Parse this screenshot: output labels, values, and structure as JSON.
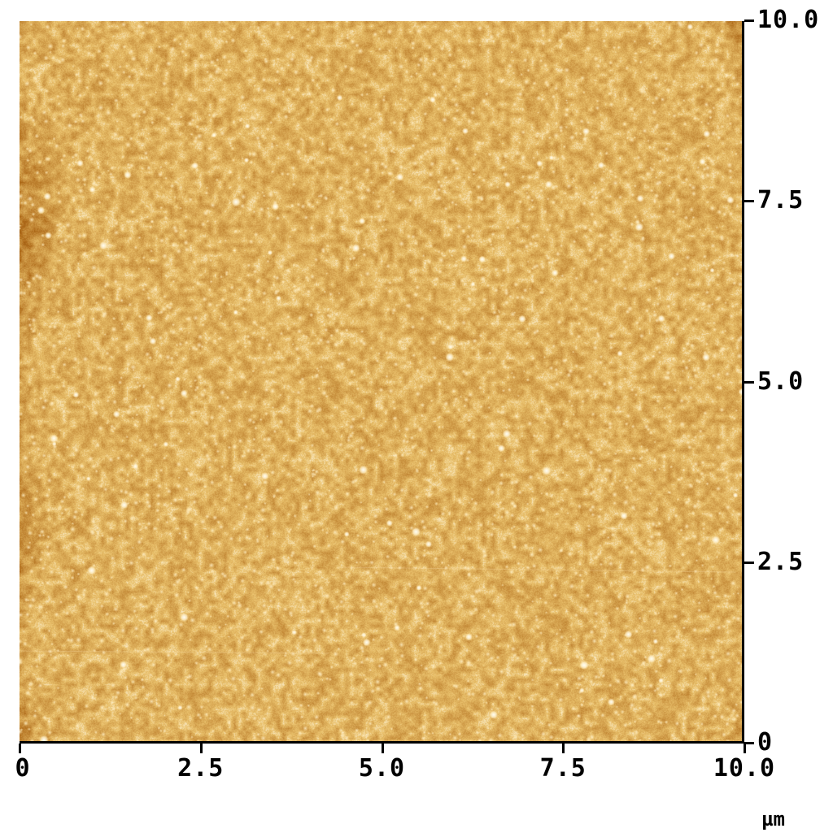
{
  "image": {
    "description_name": "afm-topography-scan",
    "palette": {
      "dark": "#2a0c00",
      "mid": "#9a5a18",
      "light": "#e8c070",
      "highlight": "#fff8e8"
    }
  },
  "axes": {
    "x": {
      "ticks": [
        "0",
        "2.5",
        "5.0",
        "7.5",
        "10.0"
      ],
      "unit": "µm",
      "range": [
        0,
        10
      ]
    },
    "y": {
      "ticks": [
        "0",
        "2.5",
        "5.0",
        "7.5",
        "10.0"
      ],
      "range": [
        0,
        10
      ]
    }
  }
}
